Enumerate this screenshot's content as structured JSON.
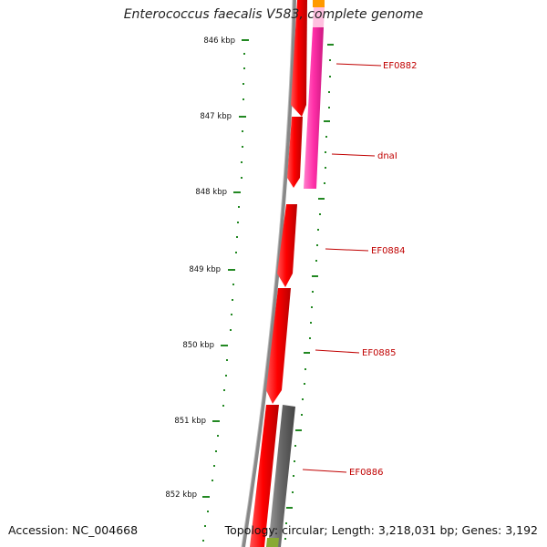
{
  "title": "Enterococcus faecalis V583, complete genome",
  "footer": {
    "accession": "Accession: NC_004668",
    "summary": "Topology: circular; Length: 3,218,031 bp; Genes: 3,192"
  },
  "ticks": [
    "846 kbp",
    "847 kbp",
    "848 kbp",
    "849 kbp",
    "850 kbp",
    "851 kbp",
    "852 kbp"
  ],
  "genes": [
    "EF0882",
    "dnaI",
    "EF0884",
    "EF0885",
    "EF0886"
  ],
  "colors": {
    "cds": "#ff0000",
    "pink_feature": "#ff2fa8",
    "grey_feature": "#666666",
    "orange_feature": "#ff9900",
    "green_feature": "#88aa33",
    "backbone": "#888888",
    "tick": "#228822",
    "label": "#c00000"
  }
}
